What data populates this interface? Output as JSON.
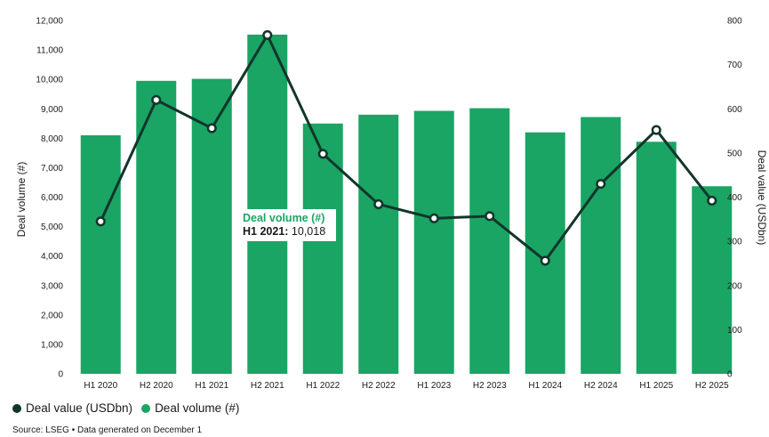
{
  "chart_data": {
    "type": "bar+line",
    "categories": [
      "H1 2020",
      "H2 2020",
      "H1 2021",
      "H2 2021",
      "H1 2022",
      "H2 2022",
      "H1 2023",
      "H2 2023",
      "H1 2024",
      "H2 2024",
      "H1 2025",
      "H2 2025"
    ],
    "series": [
      {
        "name": "Deal volume (#)",
        "type": "bar",
        "axis": "left",
        "values": [
          8100,
          9950,
          10018,
          11520,
          8500,
          8800,
          8930,
          9020,
          8200,
          8720,
          7880,
          6370
        ]
      },
      {
        "name": "Deal value (USDbn)",
        "type": "line",
        "axis": "right",
        "values": [
          345,
          620,
          556,
          767,
          498,
          384,
          352,
          357,
          256,
          430,
          552,
          392
        ]
      }
    ],
    "ylabel_left": "Deal volume (#)",
    "ylabel_right": "Deal value (USDbn)",
    "ylim_left": [
      0,
      12000
    ],
    "ylim_right": [
      0,
      800
    ],
    "yticks_left": [
      "0",
      "1,000",
      "2,000",
      "3,000",
      "4,000",
      "5,000",
      "6,000",
      "7,000",
      "8,000",
      "9,000",
      "10,000",
      "11,000",
      "12,000"
    ],
    "yticks_right": [
      "0",
      "100",
      "200",
      "300",
      "400",
      "500",
      "600",
      "700",
      "800"
    ],
    "grid": false,
    "legend_position": "bottom-left",
    "colors": {
      "bar": "#1aa564",
      "line": "#12352a",
      "marker_fill": "#ffffff"
    }
  },
  "legend": [
    {
      "label": "Deal value (USDbn)",
      "color": "#12352a"
    },
    {
      "label": "Deal volume (#)",
      "color": "#1aa564"
    }
  ],
  "tooltip": {
    "title": "Deal volume (#)",
    "period": "H1 2021:",
    "value": "10,018"
  },
  "source": "Source: LSEG • Data generated on December 1"
}
